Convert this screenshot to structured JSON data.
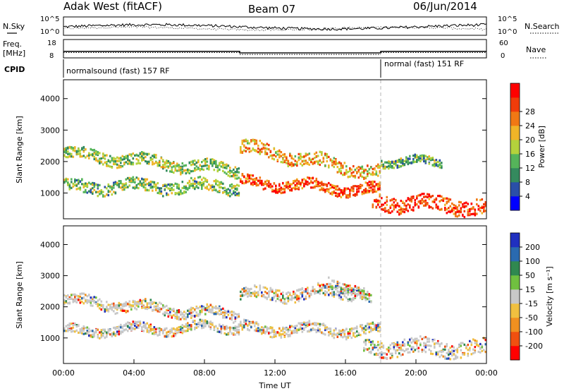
{
  "header": {
    "station": "Adak West (fitACF)",
    "beam": "Beam 07",
    "date": "06/Jun/2014"
  },
  "noise_panel": {
    "left_label": "N.Sky",
    "right_label": "N.Search",
    "left_ticks": [
      "10^5",
      "10^0"
    ],
    "right_ticks": [
      "10^5",
      "10^0"
    ]
  },
  "freq_panel": {
    "left_label_1": "Freq.",
    "left_label_2": "[MHz]",
    "right_label": "Nave",
    "left_ticks": [
      "18",
      "8"
    ],
    "right_ticks": [
      "60",
      "0"
    ],
    "freq_steps": [
      {
        "start_h": 0,
        "end_h": 10,
        "value": 11.3
      },
      {
        "start_h": 10,
        "end_h": 18,
        "value": 10.3
      },
      {
        "start_h": 18,
        "end_h": 24,
        "value": 11.3
      }
    ],
    "nave_steps": [
      {
        "start_h": 0,
        "end_h": 10,
        "value": 15
      },
      {
        "start_h": 10,
        "end_h": 18,
        "value": 8
      },
      {
        "start_h": 18,
        "end_h": 24,
        "value": 15
      }
    ]
  },
  "cpid_panel": {
    "label": "CPID",
    "modes": [
      {
        "text": "normalsound (fast) 157 RF",
        "start_h": 0
      },
      {
        "text": "normal (fast) 151 RF",
        "start_h": 18
      }
    ]
  },
  "chart_data": [
    {
      "type": "heatmap",
      "name": "power",
      "ylabel": "Slant Range [km]",
      "xlabel": "",
      "ylim": [
        180,
        4600
      ],
      "xlim_h": [
        0,
        24
      ],
      "yticks": [
        "1000",
        "2000",
        "3000",
        "4000"
      ],
      "colorbar": {
        "label": "Power [dB]",
        "ticks": [
          "4",
          "8",
          "12",
          "16",
          "20",
          "24",
          "28"
        ],
        "colors": [
          "#0000ff",
          "#2a4fa8",
          "#348a5e",
          "#55b45a",
          "#b4d23c",
          "#f0b428",
          "#f07814",
          "#f03c0a",
          "#ff0000"
        ]
      },
      "echo_bands": [
        {
          "start_h": 0.0,
          "end_h": 9.9,
          "from_km": 2250,
          "to_km": 1700,
          "width_km": 280,
          "level": 0.45
        },
        {
          "start_h": 0.0,
          "end_h": 9.9,
          "from_km": 1180,
          "to_km": 1200,
          "width_km": 300,
          "level": 0.4
        },
        {
          "start_h": 10.0,
          "end_h": 18.0,
          "from_km": 2450,
          "to_km": 1600,
          "width_km": 320,
          "level": 0.65
        },
        {
          "start_h": 10.0,
          "end_h": 18.0,
          "from_km": 1350,
          "to_km": 1050,
          "width_km": 260,
          "level": 0.85
        },
        {
          "start_h": 17.5,
          "end_h": 24.0,
          "from_km": 700,
          "to_km": 550,
          "width_km": 380,
          "level": 0.9
        },
        {
          "start_h": 18.0,
          "end_h": 21.5,
          "from_km": 2000,
          "to_km": 1950,
          "width_km": 200,
          "level": 0.35
        }
      ]
    },
    {
      "type": "heatmap",
      "name": "velocity",
      "ylabel": "Slant Range [km]",
      "xlabel": "Time UT",
      "ylim": [
        180,
        4600
      ],
      "xlim_h": [
        0,
        24
      ],
      "yticks": [
        "1000",
        "2000",
        "3000",
        "4000"
      ],
      "xticks": [
        "00:00",
        "04:00",
        "08:00",
        "12:00",
        "16:00",
        "20:00",
        "00:00"
      ],
      "colorbar": {
        "label": "Velocity [m s⁻¹]",
        "ticks": [
          "200",
          "100",
          "50",
          "15",
          "-15",
          "-50",
          "-100",
          "-200"
        ],
        "colors": [
          "#2030c0",
          "#2a6ab0",
          "#308850",
          "#70c040",
          "#c8c8c8",
          "#f0c040",
          "#f09020",
          "#f05010",
          "#ff0000"
        ]
      },
      "echo_bands": [
        {
          "start_h": 0.0,
          "end_h": 9.9,
          "from_km": 2200,
          "to_km": 1700,
          "width_km": 260,
          "level": 0.5
        },
        {
          "start_h": 0.0,
          "end_h": 9.9,
          "from_km": 1200,
          "to_km": 1350,
          "width_km": 220,
          "level": 0.5
        },
        {
          "start_h": 10.0,
          "end_h": 17.0,
          "from_km": 2350,
          "to_km": 2500,
          "width_km": 300,
          "level": 0.5
        },
        {
          "start_h": 10.0,
          "end_h": 18.0,
          "from_km": 1300,
          "to_km": 1200,
          "width_km": 260,
          "level": 0.5
        },
        {
          "start_h": 15.0,
          "end_h": 17.5,
          "from_km": 2900,
          "to_km": 2100,
          "width_km": 250,
          "level": 0.3
        },
        {
          "start_h": 17.0,
          "end_h": 24.0,
          "from_km": 700,
          "to_km": 650,
          "width_km": 380,
          "level": 0.5
        }
      ]
    }
  ]
}
